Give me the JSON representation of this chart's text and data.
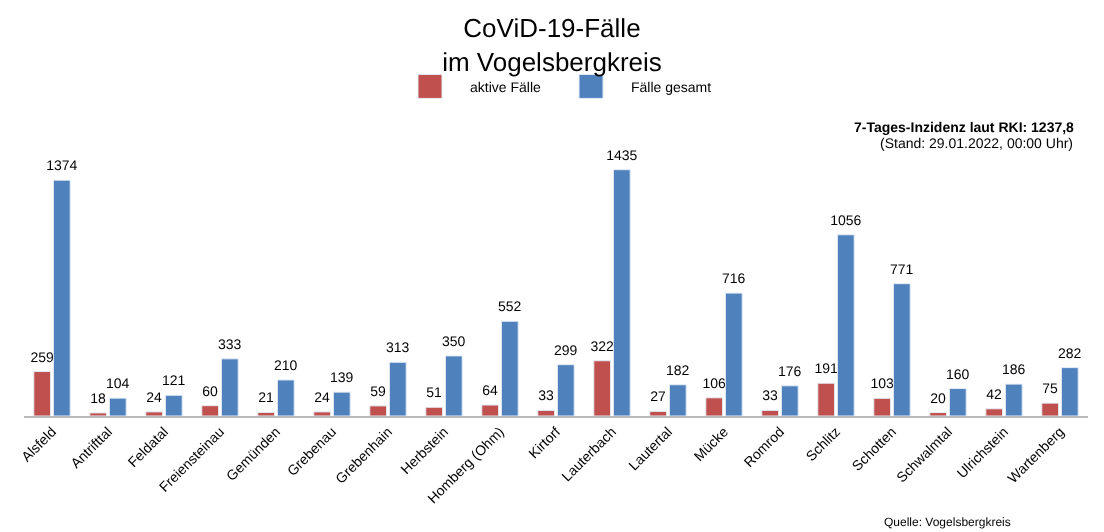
{
  "chart_data": {
    "type": "bar",
    "title": "CoViD-19-Fälle\nim Vogelsbergkreis",
    "categories": [
      "Alsfeld",
      "Antrifttal",
      "Feldatal",
      "Freiensteinau",
      "Gemünden",
      "Grebenau",
      "Grebenhain",
      "Herbstein",
      "Homberg (Ohm)",
      "Kirtorf",
      "Lauterbach",
      "Lautertal",
      "Mücke",
      "Romrod",
      "Schlitz",
      "Schotten",
      "Schwalmtal",
      "Ulrichstein",
      "Wartenberg"
    ],
    "series": [
      {
        "name": "aktive Fälle",
        "color": "#c0504d",
        "values": [
          259,
          18,
          24,
          60,
          21,
          24,
          59,
          51,
          64,
          33,
          322,
          27,
          106,
          33,
          191,
          103,
          20,
          42,
          75
        ]
      },
      {
        "name": "Fälle gesamt",
        "color": "#4f81bd",
        "values": [
          1374,
          104,
          121,
          333,
          210,
          139,
          313,
          350,
          552,
          299,
          1435,
          182,
          716,
          176,
          1056,
          771,
          160,
          186,
          282
        ]
      }
    ],
    "data_labels": true,
    "legend": "top",
    "annotations": [
      "7-Tages-Inzidenz laut RKI: 1237,8",
      "(Stand: 29.01.2022, 00:00 Uhr)",
      "Quelle: Vogelsbergkreis"
    ]
  }
}
